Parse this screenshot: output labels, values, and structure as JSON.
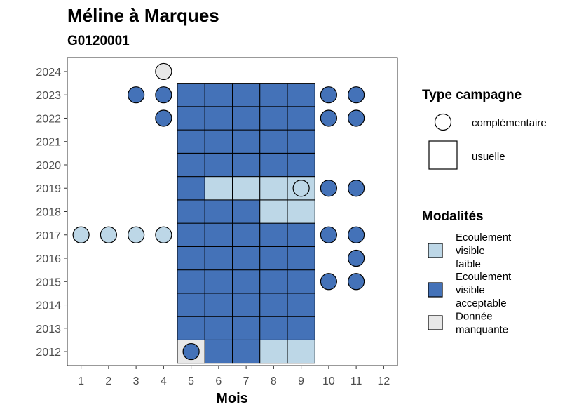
{
  "chart_data": {
    "type": "heatmap",
    "title": "Méline à Marques",
    "subtitle": "G0120001",
    "xlabel": "Mois",
    "ylabel": "",
    "x_ticks": [
      1,
      2,
      3,
      4,
      5,
      6,
      7,
      8,
      9,
      10,
      11,
      12
    ],
    "y_ticks": [
      2012,
      2013,
      2014,
      2015,
      2016,
      2017,
      2018,
      2019,
      2020,
      2021,
      2022,
      2023,
      2024
    ],
    "xlim": [
      0.5,
      12.5
    ],
    "ylim": [
      2011.4,
      2024.6
    ],
    "grid": false,
    "colors": {
      "acceptable": "#4472b8",
      "faible": "#bdd7e7",
      "manquante": "#e8e8e8"
    },
    "legend": {
      "campagne_title": "Type campagne",
      "campagne_items": [
        {
          "key": "complementaire",
          "label": "complémentaire",
          "shape": "circle"
        },
        {
          "key": "usuelle",
          "label": "usuelle",
          "shape": "square"
        }
      ],
      "modalites_title": "Modalités",
      "modalites_items": [
        {
          "key": "faible",
          "lines": [
            "Ecoulement",
            "visible",
            "faible"
          ]
        },
        {
          "key": "acceptable",
          "lines": [
            "Ecoulement",
            "visible",
            "acceptable"
          ]
        },
        {
          "key": "manquante",
          "lines": [
            "Donnée",
            "manquante"
          ]
        }
      ],
      "placement": "right"
    },
    "usuelle": [
      {
        "year": 2012,
        "months": [
          "manquante",
          "acceptable",
          "acceptable",
          "faible",
          "faible"
        ]
      },
      {
        "year": 2013,
        "months": [
          "acceptable",
          "acceptable",
          "acceptable",
          "acceptable",
          "acceptable"
        ]
      },
      {
        "year": 2014,
        "months": [
          "acceptable",
          "acceptable",
          "acceptable",
          "acceptable",
          "acceptable"
        ]
      },
      {
        "year": 2015,
        "months": [
          "acceptable",
          "acceptable",
          "acceptable",
          "acceptable",
          "acceptable"
        ]
      },
      {
        "year": 2016,
        "months": [
          "acceptable",
          "acceptable",
          "acceptable",
          "acceptable",
          "acceptable"
        ]
      },
      {
        "year": 2017,
        "months": [
          "acceptable",
          "acceptable",
          "acceptable",
          "acceptable",
          "acceptable"
        ]
      },
      {
        "year": 2018,
        "months": [
          "acceptable",
          "acceptable",
          "acceptable",
          "faible",
          "faible"
        ]
      },
      {
        "year": 2019,
        "months": [
          "acceptable",
          "faible",
          "faible",
          "faible",
          "faible"
        ]
      },
      {
        "year": 2020,
        "months": [
          "acceptable",
          "acceptable",
          "acceptable",
          "acceptable",
          "acceptable"
        ]
      },
      {
        "year": 2021,
        "months": [
          "acceptable",
          "acceptable",
          "acceptable",
          "acceptable",
          "acceptable"
        ]
      },
      {
        "year": 2022,
        "months": [
          "acceptable",
          "acceptable",
          "acceptable",
          "acceptable",
          "acceptable"
        ]
      },
      {
        "year": 2023,
        "months": [
          "acceptable",
          "acceptable",
          "acceptable",
          "acceptable",
          "acceptable"
        ]
      }
    ],
    "usuelle_start_month": 5,
    "complementaire": [
      {
        "month": 4,
        "year": 2024,
        "value": "manquante"
      },
      {
        "month": 3,
        "year": 2023,
        "value": "acceptable"
      },
      {
        "month": 4,
        "year": 2023,
        "value": "acceptable"
      },
      {
        "month": 10,
        "year": 2023,
        "value": "acceptable"
      },
      {
        "month": 11,
        "year": 2023,
        "value": "acceptable"
      },
      {
        "month": 4,
        "year": 2022,
        "value": "acceptable"
      },
      {
        "month": 10,
        "year": 2022,
        "value": "acceptable"
      },
      {
        "month": 11,
        "year": 2022,
        "value": "acceptable"
      },
      {
        "month": 9,
        "year": 2019,
        "value": "faible"
      },
      {
        "month": 10,
        "year": 2019,
        "value": "acceptable"
      },
      {
        "month": 11,
        "year": 2019,
        "value": "acceptable"
      },
      {
        "month": 1,
        "year": 2017,
        "value": "faible"
      },
      {
        "month": 2,
        "year": 2017,
        "value": "faible"
      },
      {
        "month": 3,
        "year": 2017,
        "value": "faible"
      },
      {
        "month": 4,
        "year": 2017,
        "value": "faible"
      },
      {
        "month": 10,
        "year": 2017,
        "value": "acceptable"
      },
      {
        "month": 11,
        "year": 2017,
        "value": "acceptable"
      },
      {
        "month": 11,
        "year": 2016,
        "value": "acceptable"
      },
      {
        "month": 10,
        "year": 2015,
        "value": "acceptable"
      },
      {
        "month": 11,
        "year": 2015,
        "value": "acceptable"
      },
      {
        "month": 5,
        "year": 2012,
        "value": "acceptable"
      }
    ]
  }
}
